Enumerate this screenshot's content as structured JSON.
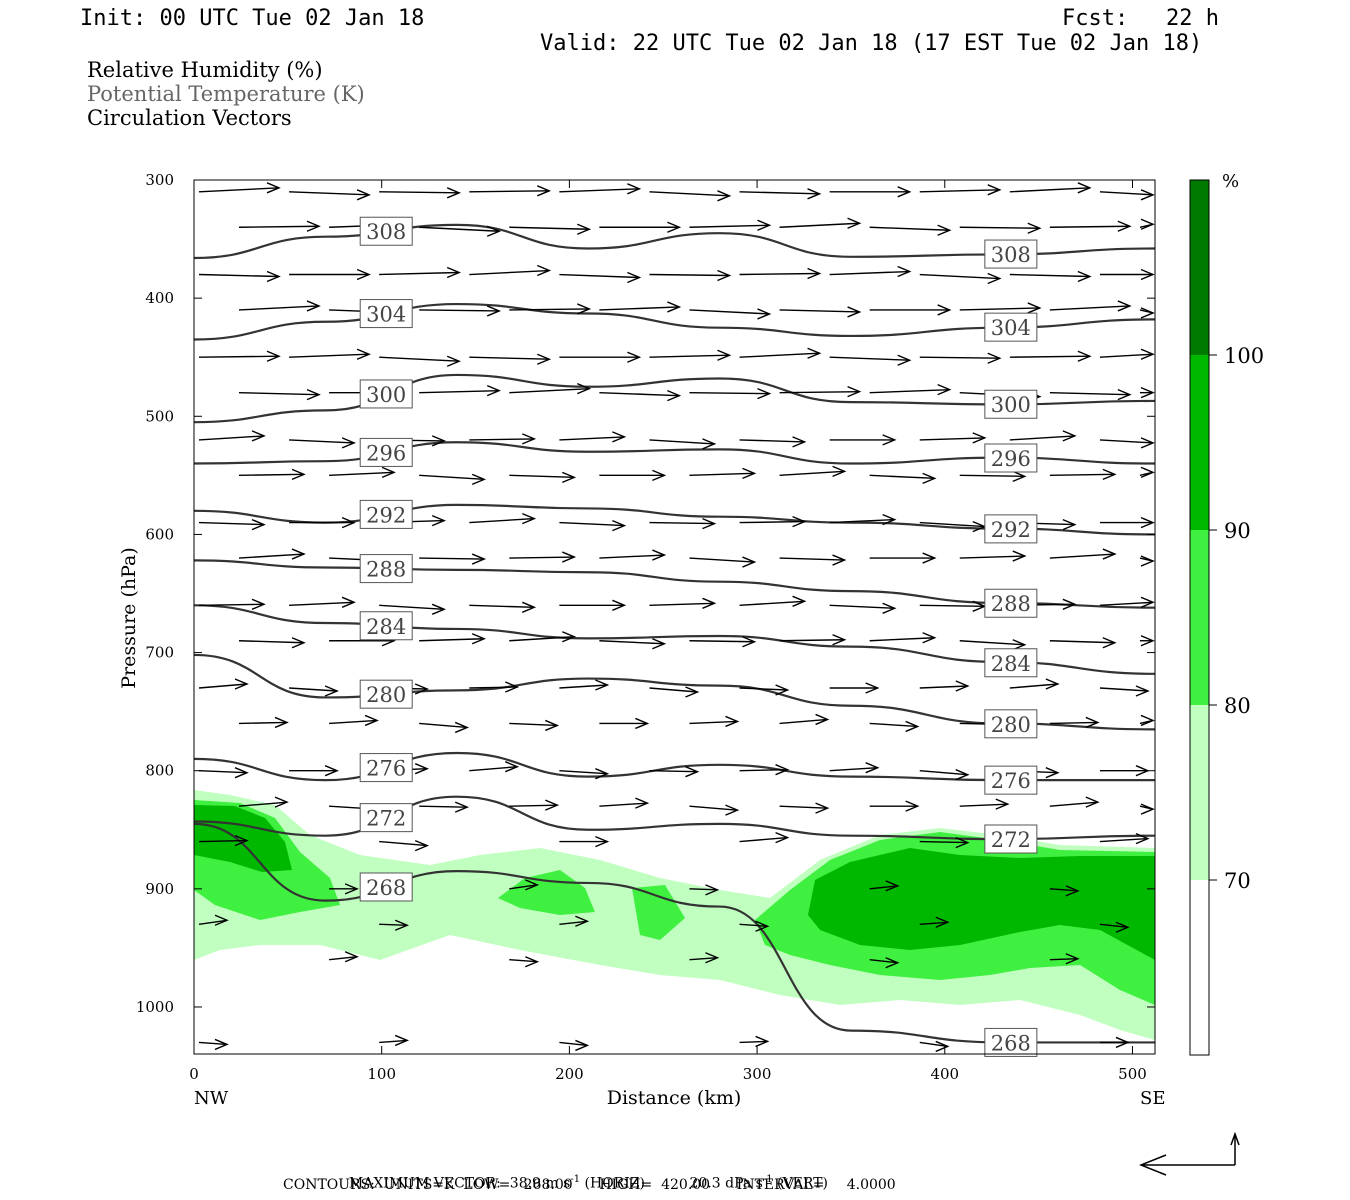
{
  "header": {
    "init": "Init: 00 UTC Tue 02 Jan 18",
    "fcst_label": "Fcst:",
    "fcst_value": "22 h",
    "valid": "Valid: 22 UTC Tue 02 Jan 18 (17 EST Tue 02 Jan 18)"
  },
  "legend": {
    "rh": "Relative Humidity (%)",
    "theta": "Potential Temperature (K)",
    "vectors": "Circulation Vectors"
  },
  "footer": {
    "max_label": "MAXIMUM VECTOR:",
    "max_horiz": "38.9 m s",
    "horiz_tag": "(HORIZ)",
    "max_vert": "20.3 dPa s",
    "vert_tag": "(VERT)",
    "exponent": "-1",
    "contours": "CONTOURS:  UNITS=K  LOW=   268.00      HIGH=  420.00      INTERVAL=     4.0000"
  },
  "chart_data": {
    "type": "contour",
    "xlabel": "Distance (km)",
    "ylabel": "Pressure (hPa)",
    "x_end_labels": [
      "NW",
      "SE"
    ],
    "xlim": [
      0,
      512
    ],
    "ylim": [
      1040,
      300
    ],
    "x_ticks": [
      0,
      100,
      200,
      300,
      400,
      500
    ],
    "y_ticks": [
      300,
      400,
      500,
      600,
      700,
      800,
      900,
      1000
    ],
    "colorbar": {
      "unit": "%",
      "levels": [
        70,
        80,
        90,
        100
      ],
      "colors": [
        "#ffffff",
        "#c0ffc0",
        "#40f040",
        "#00b800",
        "#007a00"
      ]
    },
    "theta_contours": [
      {
        "label": "308",
        "p": [
          366,
          348,
          338,
          358,
          345,
          365,
          363,
          358
        ]
      },
      {
        "label": "304",
        "p": [
          435,
          420,
          405,
          413,
          425,
          432,
          425,
          418
        ]
      },
      {
        "label": "300",
        "p": [
          505,
          495,
          465,
          475,
          468,
          488,
          490,
          487
        ]
      },
      {
        "label": "296",
        "p": [
          540,
          538,
          522,
          530,
          528,
          540,
          535,
          540
        ]
      },
      {
        "label": "292",
        "p": [
          580,
          590,
          575,
          578,
          585,
          590,
          595,
          600
        ]
      },
      {
        "label": "288",
        "p": [
          622,
          628,
          630,
          632,
          640,
          648,
          658,
          662
        ]
      },
      {
        "label": "284",
        "p": [
          660,
          675,
          680,
          688,
          686,
          695,
          708,
          718
        ]
      },
      {
        "label": "280",
        "p": [
          702,
          738,
          732,
          722,
          728,
          745,
          760,
          765
        ]
      },
      {
        "label": "276",
        "p": [
          790,
          808,
          785,
          805,
          795,
          805,
          808,
          808
        ]
      },
      {
        "label": "272",
        "p": [
          843,
          855,
          822,
          850,
          845,
          855,
          858,
          855
        ]
      },
      {
        "label": "268",
        "p": [
          845,
          910,
          885,
          895,
          915,
          1020,
          1030,
          1030
        ]
      }
    ],
    "rh_regions": [
      {
        "level": 70,
        "note": "low-level moist layer 850-1030 hPa"
      },
      {
        "level": 90,
        "note": "core near NW end and 350-512 km"
      }
    ],
    "vector_rows_hpa": [
      310,
      340,
      380,
      410,
      450,
      480,
      520,
      550,
      590,
      620,
      660,
      690,
      730,
      760,
      800,
      830,
      860,
      900,
      930,
      960,
      1030
    ]
  }
}
